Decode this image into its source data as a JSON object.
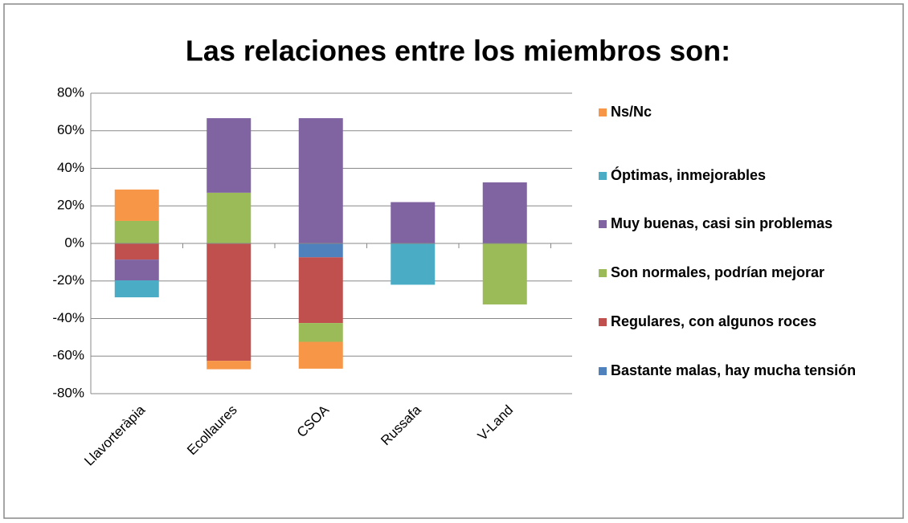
{
  "chart_data": {
    "type": "bar",
    "stacked": true,
    "title": "Las relaciones entre los miembros son:",
    "categories": [
      "Llavorteràpia",
      "Ecollaures",
      "CSOA",
      "Russafa",
      "V-Land"
    ],
    "series": [
      {
        "name": "Bastante malas, hay mucha tensión",
        "color": "#4f81bd",
        "values": [
          0,
          0,
          -7.4,
          0,
          0
        ]
      },
      {
        "name": "Regulares, con algunos roces",
        "color": "#c0504d",
        "values": [
          -8.6,
          -62.5,
          -35,
          0,
          0
        ]
      },
      {
        "name": "Son normales, podrían mejorar",
        "color": "#9bbb59",
        "values": [
          12,
          27,
          -10,
          0,
          -32.5
        ]
      },
      {
        "name": "Muy buenas, casi sin problemas",
        "color": "#8064a2",
        "values": [
          -11.1,
          39.7,
          66.7,
          22,
          32.5
        ]
      },
      {
        "name": "Óptimas, inmejorables",
        "color": "#4bacc6",
        "values": [
          -9,
          0,
          0,
          -22,
          0
        ]
      },
      {
        "name": "Ns/Nc",
        "color": "#f79646",
        "values": [
          16.7,
          -4.5,
          -14.3,
          0,
          0
        ]
      }
    ],
    "ylim": [
      -80,
      80
    ],
    "yticks": [
      {
        "value": -80,
        "label": "-80%"
      },
      {
        "value": -60,
        "label": "-60%"
      },
      {
        "value": -40,
        "label": "-40%"
      },
      {
        "value": -20,
        "label": "-20%"
      },
      {
        "value": 0,
        "label": "0%"
      },
      {
        "value": 20,
        "label": "20%"
      },
      {
        "value": 40,
        "label": "40%"
      },
      {
        "value": 60,
        "label": "60%"
      },
      {
        "value": 80,
        "label": "80%"
      }
    ],
    "grid": true,
    "legend": "right"
  }
}
